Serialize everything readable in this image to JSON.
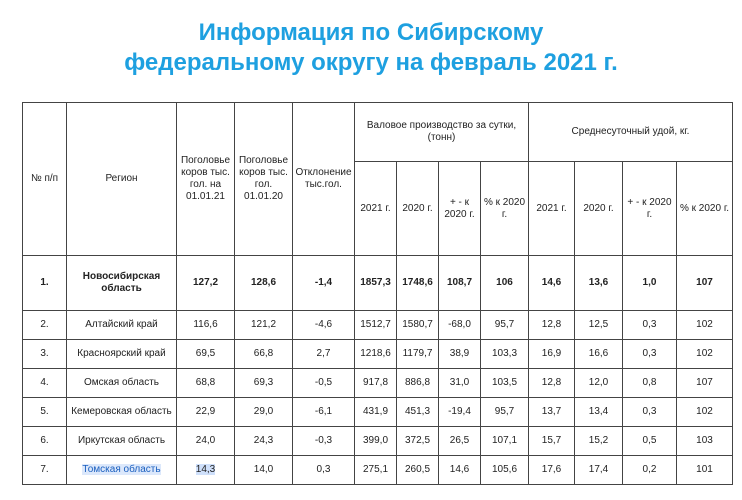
{
  "title_line1": "Информация по Сибирскому",
  "title_line2": "федеральному округу на февраль 2021 г.",
  "table": {
    "headers": {
      "num": "№ п/п",
      "region": "Регион",
      "cows_2021": "Поголовье коров тыс. гол. на 01.01.21",
      "cows_2020": "Поголовье коров тыс. гол. 01.01.20",
      "deviation": "Отклонение тыс.гол.",
      "gross_group": "Валовое производство за сутки, (тонн)",
      "yield_group": "Среднесуточный удой, кг.",
      "g_2021": "2021 г.",
      "g_2020": "2020 г.",
      "g_diff": "+ - к 2020 г.",
      "g_pct": "% к 2020 г.",
      "y_2021": "2021 г.",
      "y_2020": "2020 г.",
      "y_diff": "+ - к 2020 г.",
      "y_pct": "% к 2020 г."
    },
    "rows": [
      {
        "num": "1.",
        "region": "Новосибирская область",
        "cows21": "127,2",
        "cows20": "128,6",
        "dev": "-1,4",
        "g21": "1857,3",
        "g20": "1748,6",
        "gdiff": "108,7",
        "gpct": "106",
        "y21": "14,6",
        "y20": "13,6",
        "ydiff": "1,0",
        "ypct": "107"
      },
      {
        "num": "2.",
        "region": "Алтайский край",
        "cows21": "116,6",
        "cows20": "121,2",
        "dev": "-4,6",
        "g21": "1512,7",
        "g20": "1580,7",
        "gdiff": "-68,0",
        "gpct": "95,7",
        "y21": "12,8",
        "y20": "12,5",
        "ydiff": "0,3",
        "ypct": "102"
      },
      {
        "num": "3.",
        "region": "Красноярский край",
        "cows21": "69,5",
        "cows20": "66,8",
        "dev": "2,7",
        "g21": "1218,6",
        "g20": "1179,7",
        "gdiff": "38,9",
        "gpct": "103,3",
        "y21": "16,9",
        "y20": "16,6",
        "ydiff": "0,3",
        "ypct": "102"
      },
      {
        "num": "4.",
        "region": "Омская область",
        "cows21": "68,8",
        "cows20": "69,3",
        "dev": "-0,5",
        "g21": "917,8",
        "g20": "886,8",
        "gdiff": "31,0",
        "gpct": "103,5",
        "y21": "12,8",
        "y20": "12,0",
        "ydiff": "0,8",
        "ypct": "107"
      },
      {
        "num": "5.",
        "region": "Кемеровская область",
        "cows21": "22,9",
        "cows20": "29,0",
        "dev": "-6,1",
        "g21": "431,9",
        "g20": "451,3",
        "gdiff": "-19,4",
        "gpct": "95,7",
        "y21": "13,7",
        "y20": "13,4",
        "ydiff": "0,3",
        "ypct": "102"
      },
      {
        "num": "6.",
        "region": "Иркутская область",
        "cows21": "24,0",
        "cows20": "24,3",
        "dev": "-0,3",
        "g21": "399,0",
        "g20": "372,5",
        "gdiff": "26,5",
        "gpct": "107,1",
        "y21": "15,7",
        "y20": "15,2",
        "ydiff": "0,5",
        "ypct": "103"
      },
      {
        "num": "7.",
        "region": "Томская область",
        "cows21": "14,3",
        "cows20": "14,0",
        "dev": "0,3",
        "g21": "275,1",
        "g20": "260,5",
        "gdiff": "14,6",
        "gpct": "105,6",
        "y21": "17,6",
        "y20": "17,4",
        "ydiff": "0,2",
        "ypct": "101"
      }
    ]
  }
}
